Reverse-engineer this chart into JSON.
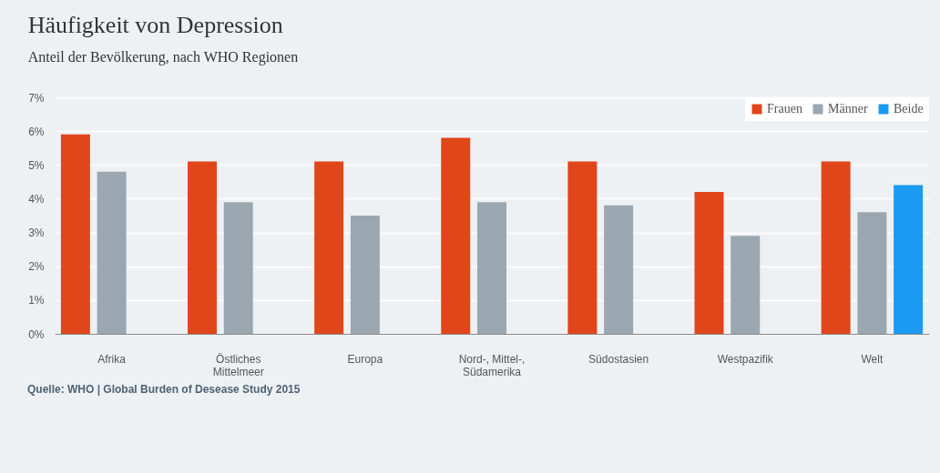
{
  "chart_data": {
    "type": "bar",
    "title": "Häufigkeit von Depression",
    "subtitle": "Anteil der Bevölkerung, nach WHO Regionen",
    "categories": [
      "Afrika",
      "Östliches Mittelmeer",
      "Europa",
      "Nord-, Mittel-, Südamerika",
      "Südostasien",
      "Westpazifik",
      "Welt"
    ],
    "series": [
      {
        "name": "Frauen",
        "color": "#e0461a",
        "values": [
          5.9,
          5.1,
          5.1,
          5.8,
          5.1,
          4.2,
          5.1
        ]
      },
      {
        "name": "Männer",
        "color": "#9aa7b1",
        "values": [
          4.8,
          3.9,
          3.5,
          3.9,
          3.8,
          2.9,
          3.6
        ]
      },
      {
        "name": "Beide",
        "color": "#1a9af0",
        "values": [
          null,
          null,
          null,
          null,
          null,
          null,
          4.4
        ]
      }
    ],
    "ylim": [
      0,
      7
    ],
    "yticks": [
      {
        "value": 0,
        "label": "0%"
      },
      {
        "value": 1,
        "label": "1%"
      },
      {
        "value": 2,
        "label": "2%"
      },
      {
        "value": 3,
        "label": "3%"
      },
      {
        "value": 4,
        "label": "4%"
      },
      {
        "value": 5,
        "label": "5%"
      },
      {
        "value": 6,
        "label": "6%"
      },
      {
        "value": 7,
        "label": "7%"
      }
    ],
    "grid": "y",
    "legend": "top right",
    "annotations": [
      "Quelle: WHO | Global Burden of Desease Study 2015"
    ]
  }
}
